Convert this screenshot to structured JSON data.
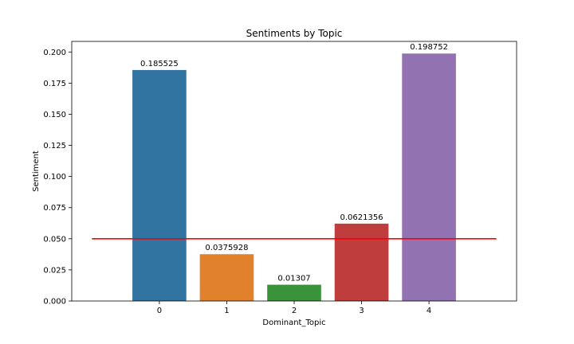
{
  "chart_data": {
    "type": "bar",
    "title": "Sentiments by Topic",
    "xlabel": "Dominant_Topic",
    "ylabel": "Sentiment",
    "categories": [
      "0",
      "1",
      "2",
      "3",
      "4"
    ],
    "values": [
      0.185525,
      0.0375928,
      0.01307,
      0.0621356,
      0.198752
    ],
    "data_labels": [
      "0.185525",
      "0.0375928",
      "0.01307",
      "0.0621356",
      "0.198752"
    ],
    "bar_colors": [
      "#3274a1",
      "#e1812c",
      "#3a923a",
      "#c03d3e",
      "#9372b2"
    ],
    "yticks": [
      "0.000",
      "0.025",
      "0.050",
      "0.075",
      "0.100",
      "0.125",
      "0.150",
      "0.175",
      "0.200"
    ],
    "ylim": [
      0,
      0.2085
    ],
    "reference_line": {
      "y": 0.05,
      "color": "#ff0000"
    },
    "grid": false,
    "legend": "none"
  }
}
